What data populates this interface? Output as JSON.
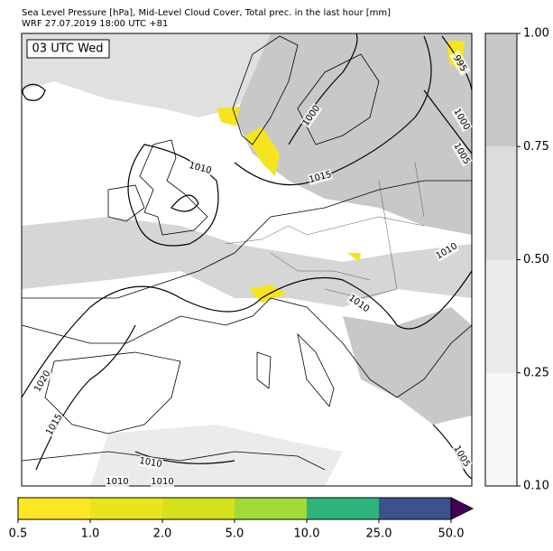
{
  "header": {
    "title": "Sea Level Pressure [hPa], Mid-Level Cloud Cover, Total prec. in the last hour [mm]",
    "subtitle": "WRF 27.07.2019 18:00 UTC +81"
  },
  "map": {
    "time_label": "03 UTC Wed",
    "isobar_labels": [
      995,
      1000,
      1005,
      1000,
      1010,
      1015,
      1010,
      1010,
      1020,
      1015,
      1010,
      1010,
      1010,
      1005
    ]
  },
  "cloud_colorbar": {
    "ticks": [
      {
        "value": 0.1,
        "label": "0.10"
      },
      {
        "value": 0.25,
        "label": "0.25"
      },
      {
        "value": 0.5,
        "label": "0.50"
      },
      {
        "value": 0.75,
        "label": "0.75"
      },
      {
        "value": 1,
        "label": "1.00"
      }
    ],
    "colors": [
      "#f7f7f7",
      "#ebebeb",
      "#dcdcdc",
      "#c8c8c8"
    ]
  },
  "precip_colorbar": {
    "ticks": [
      0.5,
      {
        "value": 1,
        "label": "1.0"
      },
      {
        "value": 2,
        "label": "2.0"
      },
      {
        "value": 5,
        "label": "5.0"
      },
      {
        "value": 10,
        "label": "10.0"
      },
      {
        "value": 25,
        "label": "25.0"
      },
      {
        "value": 50,
        "label": "50.0"
      }
    ],
    "colors": [
      "#fde725",
      "#eae51a",
      "#d2e11b",
      "#a2da37",
      "#2eb37c",
      "#3b528b"
    ],
    "extend_color": "#440154"
  }
}
